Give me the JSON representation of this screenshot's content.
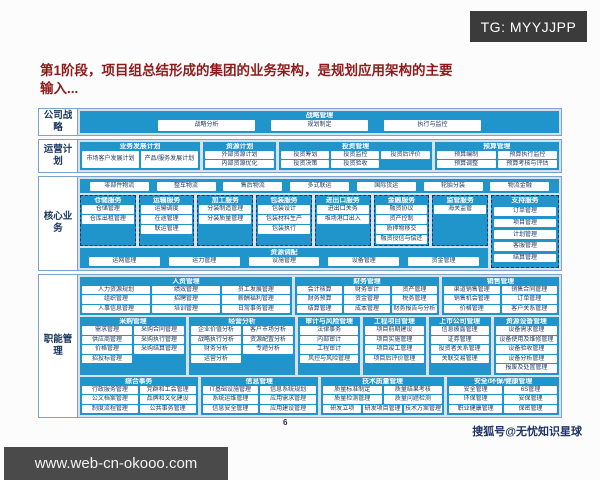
{
  "badge": "TG: MYYJJPP",
  "title_line1": "第1阶段，项目组总结形成的集团的业务架构，是规划应用架构的主要",
  "title_line2": "输入...",
  "page_number": "6",
  "footer": {
    "url": "www.web-cn-okooo.com",
    "watermark": "搜狐号@无忧知识星球"
  },
  "colors": {
    "band_blue": "#1f95cc",
    "panel_bg": "#d7e1ee",
    "title_red": "#8e1b1b",
    "node_text": "#17355e",
    "badge_bg": "#3b3b3b"
  },
  "rows": {
    "strategy": {
      "label": "公司战略",
      "group": {
        "title": "战略管理",
        "rows": [
          [
            "战略分析",
            "规划制定",
            "执行与监控"
          ]
        ]
      }
    },
    "operations": {
      "label": "运营计划",
      "groups": [
        {
          "title": "业务发展计划",
          "flex": 2.5,
          "rows": [
            [
              "市场客户发展计划",
              "产品/服务发展计划"
            ]
          ]
        },
        {
          "title": "资源计划",
          "flex": 1.5,
          "rows": [
            [
              "外部资源计划"
            ],
            [
              "内部资源优化"
            ]
          ]
        },
        {
          "title": "投资管理",
          "flex": 3.2,
          "rows": [
            [
              "投资筹划",
              "投资监控",
              "投资后评价"
            ],
            [
              "投资决策",
              "投资验收",
              ""
            ]
          ]
        },
        {
          "title": "预算管理",
          "flex": 2.6,
          "rows": [
            [
              "预算编制",
              "预算执行监控"
            ],
            [
              "预算调整",
              "预算考核与评估"
            ]
          ]
        }
      ]
    },
    "core": {
      "label": "核心业务",
      "strip": [
        "零部件物流",
        "整车物流",
        "售后物流",
        "多式联运",
        "国际货运",
        "轮胎分装",
        "物流金融"
      ],
      "columns": [
        {
          "title": "仓储服务",
          "items": [
            "仓储管理",
            "仓库出租管理"
          ]
        },
        {
          "title": "运输服务",
          "items": [
            "运输调度",
            "在途管理",
            "联运管理"
          ]
        },
        {
          "title": "加工服务",
          "items": [
            "分装制造管理",
            "分装质量管理"
          ]
        },
        {
          "title": "包装服务",
          "items": [
            "包装设计",
            "包装材料生产",
            "包装执行"
          ]
        },
        {
          "title": "进出口服务",
          "items": [
            "进出口关务",
            "堆场港口出入"
          ]
        },
        {
          "title": "金融服务",
          "items": [
            "融资协议",
            "资产控制",
            "质押物移交",
            "融资授信与偿还"
          ]
        },
        {
          "title": "监管服务",
          "items": [
            "海关监管"
          ]
        }
      ],
      "support": {
        "title": "支持服务",
        "items": [
          "订单管理",
          "项目管理",
          "计划管理",
          "客服管理",
          "结算管理"
        ]
      },
      "allocation": {
        "title": "资源调配",
        "items": [
          "运网管理",
          "运力管理",
          "设施管理",
          "设备管理",
          "资金管理"
        ]
      }
    },
    "functional": {
      "label": "职能管理",
      "bands": [
        [
          {
            "title": "人资管理",
            "flex": 2.3,
            "rows": [
              [
                "人力资源规划",
                "绩效管理",
                "员工发展管理"
              ],
              [
                "组织管理",
                "招聘管理",
                "薪酬福利管理"
              ],
              [
                "人事信息管理",
                "培训管理",
                "日常事务管理"
              ]
            ]
          },
          {
            "title": "财务管理",
            "flex": 1.55,
            "rows": [
              [
                "会计核算",
                "财务审计",
                "资产管理"
              ],
              [
                "财务预算",
                "资金管理",
                "税务管理"
              ],
              [
                "结算管理",
                "成本管理",
                "财务报告与分析"
              ]
            ]
          },
          {
            "title": "销售管理",
            "flex": 1.25,
            "rows": [
              [
                "渠道销售管理",
                "销售合同管理"
              ],
              [
                "销售机会管理",
                "订单管理"
              ],
              [
                "价格管理",
                "客户关系管理"
              ]
            ]
          }
        ],
        [
          {
            "title": "采购管理",
            "flex": 1.75,
            "rows": [
              [
                "需求管理",
                "采购合同管理"
              ],
              [
                "供应商管理",
                "采购执行管理"
              ],
              [
                "价格管理",
                "采购结算管理"
              ],
              [
                "招投标管理",
                ""
              ]
            ]
          },
          {
            "title": "经营分析",
            "flex": 1.75,
            "rows": [
              [
                "企业价值分析",
                "客户市场分析"
              ],
              [
                "战略执行分析",
                "资源配置分析"
              ],
              [
                "财务分析",
                "专题分析"
              ],
              [
                "运营分析",
                ""
              ]
            ]
          },
          {
            "title": "审计与风险管理",
            "flex": 1.0,
            "rows": [
              [
                "法律事务"
              ],
              [
                "内部审计"
              ],
              [
                "工程审计"
              ],
              [
                "风控与风险管理"
              ]
            ]
          },
          {
            "title": "工程项目管理",
            "flex": 1.0,
            "rows": [
              [
                "项目前期建设"
              ],
              [
                "项目实施管理"
              ],
              [
                "项目竣工管理"
              ],
              [
                "项目后评价管理"
              ]
            ]
          },
          {
            "title": "上市公司管理",
            "flex": 1.0,
            "rows": [
              [
                "信息披露管理"
              ],
              [
                "证券管理"
              ],
              [
                "投资者关系管理"
              ],
              [
                "关联交易管理"
              ]
            ]
          },
          {
            "title": "资源设备管理",
            "flex": 1.05,
            "rows": [
              [
                "设备需求管理"
              ],
              [
                "设备使用及维修管理"
              ],
              [
                "设备验收管理"
              ],
              [
                "设备分析管理"
              ],
              [
                "报废及处置管理"
              ]
            ]
          }
        ],
        [
          {
            "title": "综合事务",
            "flex": 1.0,
            "rows": [
              [
                "行政服务管理",
                "党群和工会管理"
              ],
              [
                "公文档案管理",
                "品牌和文化建设"
              ],
              [
                "制度流程管理",
                "公共事务管理"
              ]
            ]
          },
          {
            "title": "信息管理",
            "flex": 1.0,
            "rows": [
              [
                "IT基础设施管理",
                "信息系统规划"
              ],
              [
                "系统运维管理",
                "应用需求管理"
              ],
              [
                "信息安全管理",
                "应用建设管理"
              ]
            ]
          },
          {
            "title": "技术质量管理",
            "flex": 1.05,
            "rows": [
              [
                "质量标准制定",
                "质量结果考核"
              ],
              [
                "质量检测管理",
                "质量问题检测"
              ],
              [
                "研发立项",
                "研发项目管理",
                "技术方案管理"
              ]
            ]
          },
          {
            "title": "安全/环保/健康管理",
            "flex": 0.95,
            "rows": [
              [
                "安全管理",
                "6S管理"
              ],
              [
                "环保管理",
                "安保管理"
              ],
              [
                "职业健康管理",
                "保密管理"
              ]
            ]
          }
        ]
      ]
    }
  }
}
